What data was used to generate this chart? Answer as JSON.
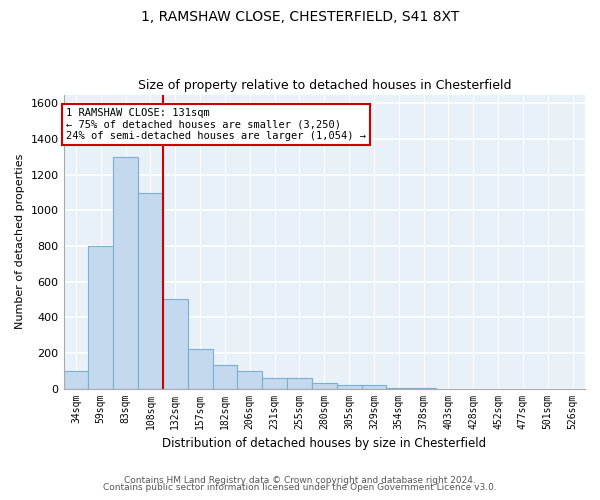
{
  "title1": "1, RAMSHAW CLOSE, CHESTERFIELD, S41 8XT",
  "title2": "Size of property relative to detached houses in Chesterfield",
  "xlabel": "Distribution of detached houses by size in Chesterfield",
  "ylabel": "Number of detached properties",
  "categories": [
    "34sqm",
    "59sqm",
    "83sqm",
    "108sqm",
    "132sqm",
    "157sqm",
    "182sqm",
    "206sqm",
    "231sqm",
    "255sqm",
    "280sqm",
    "305sqm",
    "329sqm",
    "354sqm",
    "378sqm",
    "403sqm",
    "428sqm",
    "452sqm",
    "477sqm",
    "501sqm",
    "526sqm"
  ],
  "values": [
    100,
    800,
    1300,
    1100,
    500,
    220,
    130,
    100,
    60,
    60,
    30,
    20,
    20,
    5,
    5,
    0,
    0,
    0,
    0,
    0,
    0
  ],
  "bar_color": "#c5d9ee",
  "bar_edge_color": "#7aafd4",
  "background_color": "#e8f0f8",
  "grid_color": "#ffffff",
  "red_line_index": 4,
  "annotation_text": "1 RAMSHAW CLOSE: 131sqm\n← 75% of detached houses are smaller (3,250)\n24% of semi-detached houses are larger (1,054) →",
  "annotation_box_color": "#ffffff",
  "annotation_box_edge": "#cc0000",
  "footer1": "Contains HM Land Registry data © Crown copyright and database right 2024.",
  "footer2": "Contains public sector information licensed under the Open Government Licence v3.0.",
  "ylim": [
    0,
    1650
  ],
  "yticks": [
    0,
    200,
    400,
    600,
    800,
    1000,
    1200,
    1400,
    1600
  ]
}
